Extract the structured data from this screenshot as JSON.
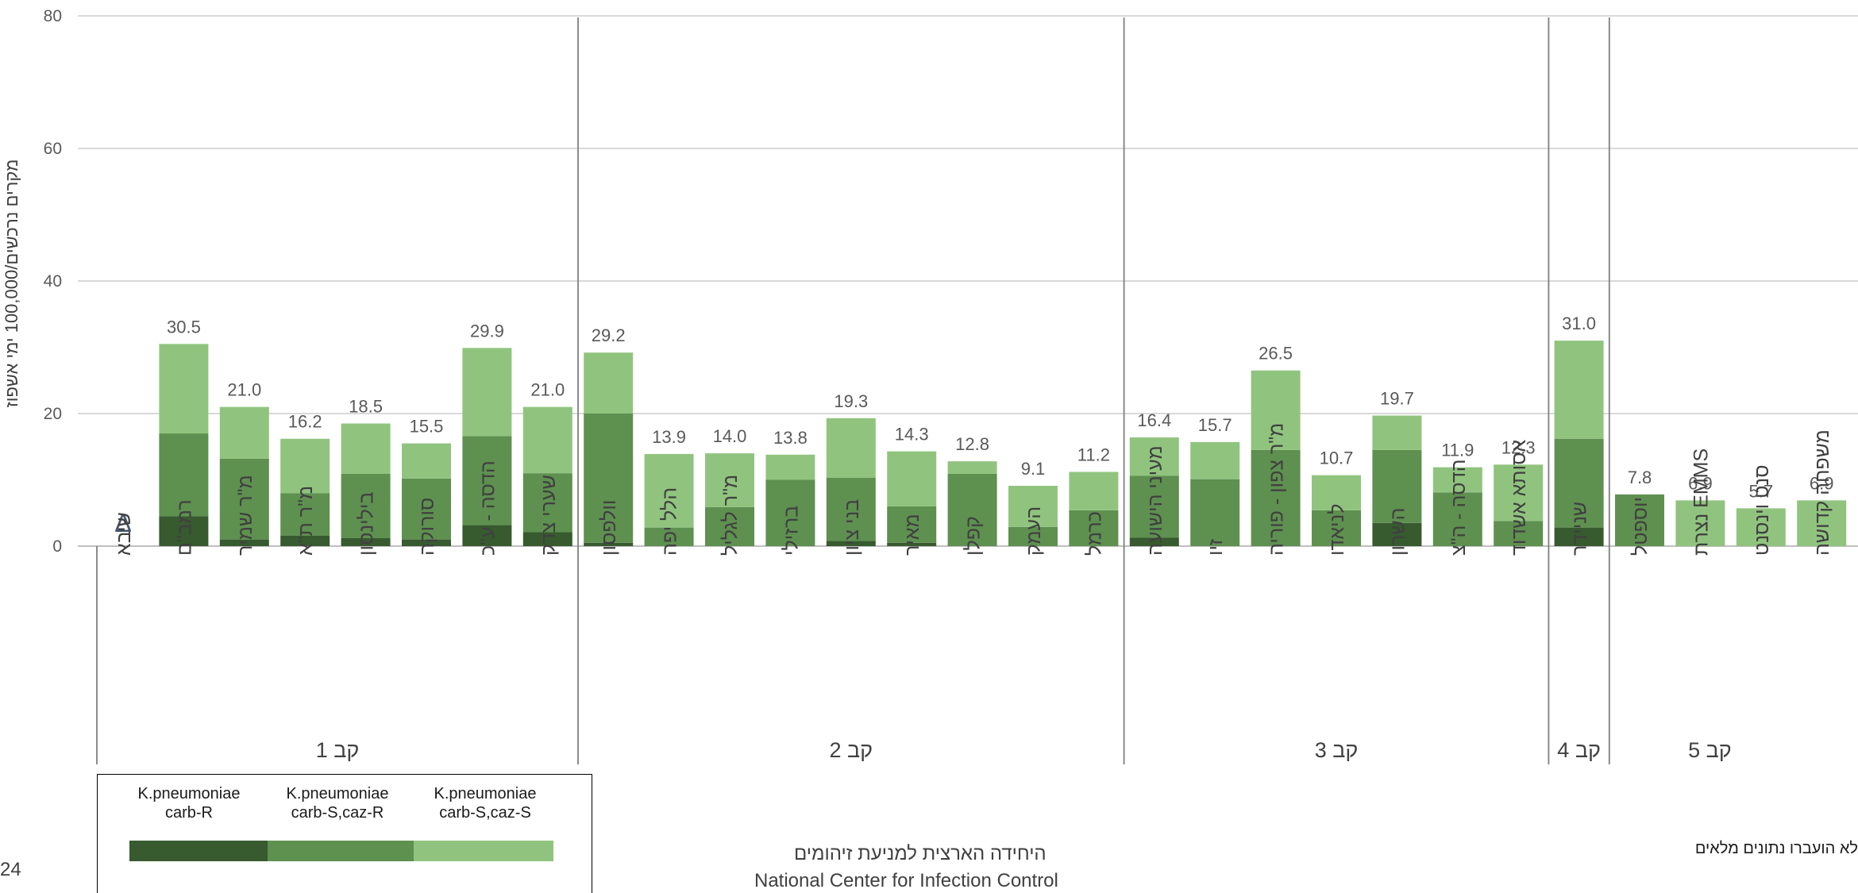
{
  "chart_data": {
    "type": "bar",
    "stacked": true,
    "ylabel": "מקרים נרכשים/100,000 ימי אשפוז",
    "ylim": [
      0,
      80
    ],
    "yticks": [
      0,
      20,
      40,
      60,
      80
    ],
    "grid": true,
    "legend_position": "bottom-left",
    "series_names": [
      "K.pneumoniae carb-R",
      "K.pneumoniae carb-S,caz-R",
      "K.pneumoniae carb-S,caz-S"
    ],
    "series_colors": [
      "#375A2E",
      "#5E9050",
      "#90C47E"
    ],
    "groups": [
      {
        "label": "קב 1",
        "items": [
          {
            "name": "שיבא",
            "values": [
              0,
              0,
              0
            ],
            "total": null,
            "marker": "Δ"
          },
          {
            "name": "רמב\"ם",
            "values": [
              4.5,
              12.5,
              13.5
            ],
            "total": "30.5"
          },
          {
            "name": "מ\"ר שמיר",
            "values": [
              1.0,
              12.2,
              7.8
            ],
            "total": "21.0"
          },
          {
            "name": "מ\"ר ת\"א",
            "values": [
              1.6,
              6.4,
              8.2
            ],
            "total": "16.2"
          },
          {
            "name": "בילינסון",
            "values": [
              1.2,
              9.7,
              7.6
            ],
            "total": "18.5"
          },
          {
            "name": "סורוקה",
            "values": [
              1.0,
              9.2,
              5.3
            ],
            "total": "15.5"
          },
          {
            "name": "הדסה - ע\"כ",
            "values": [
              3.2,
              13.4,
              13.3
            ],
            "total": "29.9"
          },
          {
            "name": "שערי צדק",
            "values": [
              2.1,
              8.9,
              10.0
            ],
            "total": "21.0"
          }
        ]
      },
      {
        "label": "קב 2",
        "items": [
          {
            "name": "וולפסון",
            "values": [
              0.5,
              19.5,
              9.2
            ],
            "total": "29.2"
          },
          {
            "name": "הלל יפה",
            "values": [
              0,
              2.8,
              11.1
            ],
            "total": "13.9"
          },
          {
            "name": "מ\"ר לגליל",
            "values": [
              0,
              5.9,
              8.1
            ],
            "total": "14.0"
          },
          {
            "name": "ברזילי",
            "values": [
              0,
              10.0,
              3.8
            ],
            "total": "13.8"
          },
          {
            "name": "בני ציון",
            "values": [
              0.8,
              9.5,
              9.0
            ],
            "total": "19.3"
          },
          {
            "name": "מאיר",
            "values": [
              0.5,
              5.5,
              8.3
            ],
            "total": "14.3"
          },
          {
            "name": "קפלן",
            "values": [
              0,
              10.9,
              1.9
            ],
            "total": "12.8"
          },
          {
            "name": "העמק",
            "values": [
              0,
              2.9,
              6.2
            ],
            "total": "9.1"
          },
          {
            "name": "כרמל",
            "values": [
              0,
              5.4,
              5.8
            ],
            "total": "11.2"
          }
        ]
      },
      {
        "label": "קב 3",
        "items": [
          {
            "name": "מעיני הישועה",
            "values": [
              1.3,
              9.3,
              5.8
            ],
            "total": "16.4"
          },
          {
            "name": "זיו",
            "values": [
              0,
              10.1,
              5.6
            ],
            "total": "15.7"
          },
          {
            "name": "מ\"ר צפון - פוריה",
            "values": [
              0,
              14.5,
              12.0
            ],
            "total": "26.5"
          },
          {
            "name": "לניאדו",
            "values": [
              0,
              5.4,
              5.3
            ],
            "total": "10.7"
          },
          {
            "name": "השרון",
            "values": [
              3.5,
              11.0,
              5.2
            ],
            "total": "19.7"
          },
          {
            "name": "הדסה - ה\"צ",
            "values": [
              0,
              8.1,
              3.8
            ],
            "total": "11.9"
          },
          {
            "name": "אסותא אשדוד",
            "values": [
              0,
              3.8,
              8.5
            ],
            "total": "12.3"
          }
        ]
      },
      {
        "label": "קב 4",
        "items": [
          {
            "name": "שניידר",
            "values": [
              2.8,
              13.4,
              14.8
            ],
            "total": "31.0"
          }
        ]
      },
      {
        "label": "קב 5",
        "items": [
          {
            "name": "יוספטל",
            "values": [
              0,
              7.8,
              0
            ],
            "total": "7.8"
          },
          {
            "name": "EMMS נצרת",
            "values": [
              0,
              0,
              6.9
            ],
            "total": "6.9"
          },
          {
            "name": "סנט וינסנט",
            "values": [
              0,
              0,
              5.7
            ],
            "total": "5.7"
          },
          {
            "name": "משפחה קדושה",
            "values": [
              0,
              0,
              6.9
            ],
            "total": "6.9"
          }
        ]
      }
    ]
  },
  "legend": {
    "items": [
      {
        "line1": "K.pneumoniae",
        "line2": "carb-R",
        "color": "#375A2E"
      },
      {
        "line1": "K.pneumoniae",
        "line2": "carb-S,caz-R",
        "color": "#5E9050"
      },
      {
        "line1": "K.pneumoniae",
        "line2": "carb-S,caz-S",
        "color": "#90C47E"
      }
    ]
  },
  "footer": {
    "org_he": "היחידה הארצית למניעת זיהומים",
    "org_en": "National Center for Infection Control",
    "note": "לא הועברו נתונים מלאים",
    "page_number": "24"
  }
}
